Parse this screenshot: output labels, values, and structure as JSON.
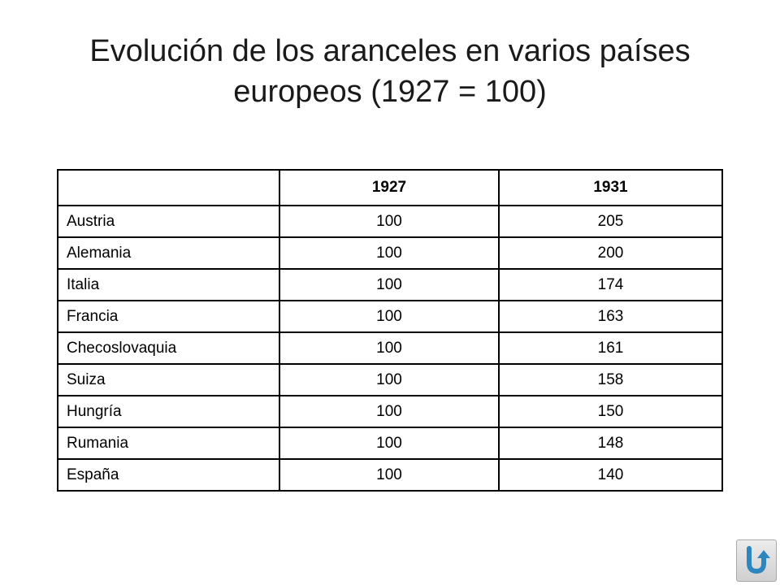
{
  "title": "Evolución de los aranceles en varios países europeos (1927 = 100)",
  "table": {
    "headers": [
      "",
      "1927",
      "1931"
    ],
    "rows": [
      [
        "Austria",
        "100",
        "205"
      ],
      [
        "Alemania",
        "100",
        "200"
      ],
      [
        "Italia",
        "100",
        "174"
      ],
      [
        "Francia",
        "100",
        "163"
      ],
      [
        "Checoslovaquia",
        "100",
        "161"
      ],
      [
        "Suiza",
        "100",
        "158"
      ],
      [
        "Hungría",
        "100",
        "150"
      ],
      [
        "Rumania",
        "100",
        "148"
      ],
      [
        "España",
        "100",
        "140"
      ]
    ]
  },
  "nav": {
    "icon": "return-arrow-icon",
    "icon_color": "#2e86c1"
  }
}
